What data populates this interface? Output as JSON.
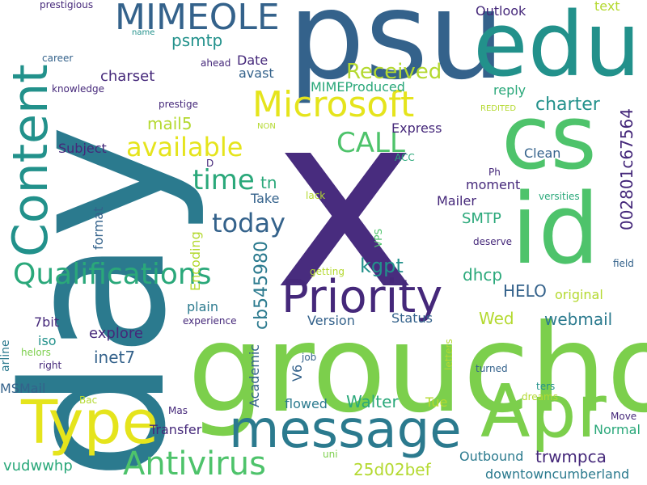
{
  "words": [
    "x",
    "day",
    "groucho",
    "psu",
    "edu",
    "cs",
    "id",
    "Apr",
    "message",
    "Type",
    "Content",
    "Priority",
    "MIMEOLE",
    "Microsoft",
    "Antivirus",
    "Qualifications",
    "available",
    "time",
    "today",
    "CALL",
    "kgpt",
    "Received",
    "charter",
    "002801c67564",
    "cb545980",
    "Express",
    "Subject",
    "Mailer",
    "SMTP",
    "HELO",
    "dhcp",
    "webmail",
    "original",
    "Wed",
    "Status",
    "Version",
    "Walter",
    "Academic",
    "Tue",
    "Outbound",
    "trwmpca",
    "25d02bef",
    "downtowncumberland",
    "vudwwhp",
    "Transfer",
    "Normal",
    "Move",
    "inet7",
    "iso",
    "explore",
    "plain",
    "7bit",
    "MSMail",
    "arline",
    "helors",
    "right",
    "Bac",
    "Mas",
    "flowed",
    "V6",
    "job",
    "letters",
    "turned",
    "ters",
    "dreams",
    "uni",
    "deserve",
    "field",
    "getting",
    "VPS",
    "lack",
    "Encoding",
    "format",
    "tn",
    "moment",
    "Take",
    "Ph",
    "versities",
    "Clean",
    "ACC",
    "REDITED",
    "NON",
    "D",
    "reply",
    "MIMEProduced",
    "avast",
    "Date",
    "psmtp",
    "mail5",
    "charset",
    "text",
    "Outlook",
    "prestigious",
    "name",
    "career",
    "ahead",
    "knowledge",
    "prestige",
    "experience"
  ],
  "palette": {
    "dark_purple": "#45287a",
    "purple": "#482c7e",
    "blue": "#34628b",
    "teal_blue": "#2b7a8e",
    "teal": "#22918b",
    "green_teal": "#2aa87a",
    "green": "#4ec36b",
    "light_green": "#7ccf4c",
    "yellow_green": "#b4d930",
    "yellow": "#e5e41c"
  }
}
